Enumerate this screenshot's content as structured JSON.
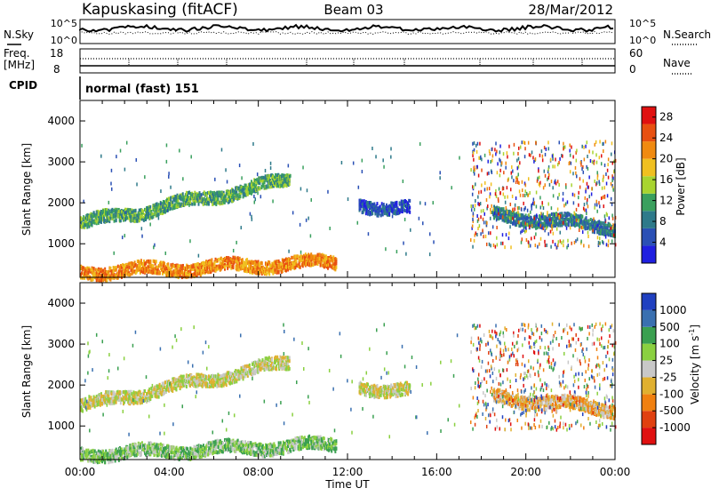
{
  "header": {
    "station": "Kapuskasing (fitACF)",
    "beam": "Beam 03",
    "date": "28/Mar/2012"
  },
  "top_panels": {
    "noise": {
      "left_label": "N.Sky",
      "right_label": "N.Search",
      "ticks_left": [
        "10^5",
        "10^0"
      ],
      "ticks_right": [
        "10^5",
        "10^0"
      ]
    },
    "freq": {
      "left_label": "Freq.",
      "left_unit": "[MHz]",
      "ticks_left": [
        "18",
        "8"
      ],
      "right_label": "Nave",
      "ticks_right": [
        "60",
        "0"
      ]
    },
    "cpid": {
      "label": "CPID",
      "text": "normal (fast) 151"
    }
  },
  "chart_data": [
    {
      "type": "heatmap",
      "title": "",
      "xlabel": "Time UT",
      "ylabel": "Slant Range [km]",
      "x_ticks": [
        "00:00",
        "04:00",
        "08:00",
        "12:00",
        "16:00",
        "20:00",
        "00:00"
      ],
      "xlim_hours": [
        0,
        24
      ],
      "y_ticks": [
        1000,
        2000,
        3000,
        4000
      ],
      "ylim": [
        180,
        4500
      ],
      "colorbar": {
        "label": "Power [dB]",
        "ticks": [
          4,
          8,
          12,
          16,
          20,
          24,
          28
        ],
        "range": [
          0,
          30
        ],
        "colors": [
          "#1f1fe0",
          "#2a50b5",
          "#2e7a8a",
          "#3aa05e",
          "#a8d430",
          "#f0c020",
          "#f08a10",
          "#e85010",
          "#e01010"
        ]
      },
      "features": [
        {
          "start_h": 0.0,
          "end_h": 9.4,
          "r_start": 1480,
          "r_end": 2550,
          "value": 14,
          "desc_color": "#3aa05e"
        },
        {
          "start_h": 12.5,
          "end_h": 14.8,
          "r_start": 1950,
          "r_end": 1850,
          "value": 8,
          "desc_color": "#2a50b5"
        },
        {
          "start_h": 18.5,
          "end_h": 24.0,
          "r_start": 1700,
          "r_end": 1400,
          "value": 12,
          "desc_color": "#2e7a8a"
        },
        {
          "start_h": 0.0,
          "end_h": 11.5,
          "r_start": 300,
          "r_end": 550,
          "value": 22,
          "desc_color": "#f08a10"
        }
      ]
    },
    {
      "type": "heatmap",
      "title": "",
      "xlabel": "Time UT",
      "ylabel": "Slant Range [km]",
      "x_ticks": [
        "00:00",
        "04:00",
        "08:00",
        "12:00",
        "16:00",
        "20:00",
        "00:00"
      ],
      "xlim_hours": [
        0,
        24
      ],
      "y_ticks": [
        1000,
        2000,
        3000,
        4000
      ],
      "ylim": [
        180,
        4500
      ],
      "colorbar": {
        "label": "Velocity [m s^-1]",
        "ticks": [
          "1000",
          "500",
          "100",
          "25",
          "-25",
          "-100",
          "-500",
          "-1000"
        ],
        "colors": [
          "#2040c0",
          "#3a70b0",
          "#3aa050",
          "#8ad040",
          "#c8c8c8",
          "#e0b030",
          "#f08010",
          "#e04010",
          "#e01010"
        ]
      },
      "features": [
        {
          "start_h": 0.0,
          "end_h": 9.4,
          "r_start": 1480,
          "r_end": 2550,
          "value": "0",
          "desc_color": "#c8c8c8"
        },
        {
          "start_h": 12.5,
          "end_h": 14.8,
          "r_start": 1950,
          "r_end": 1850,
          "value": "0",
          "desc_color": "#c8c8c8"
        },
        {
          "start_h": 18.5,
          "end_h": 24.0,
          "r_start": 1700,
          "r_end": 1400,
          "value": "-100",
          "desc_color": "#e0b030"
        },
        {
          "start_h": 0.0,
          "end_h": 11.5,
          "r_start": 300,
          "r_end": 550,
          "value": "100",
          "desc_color": "#8ad040"
        }
      ]
    }
  ]
}
